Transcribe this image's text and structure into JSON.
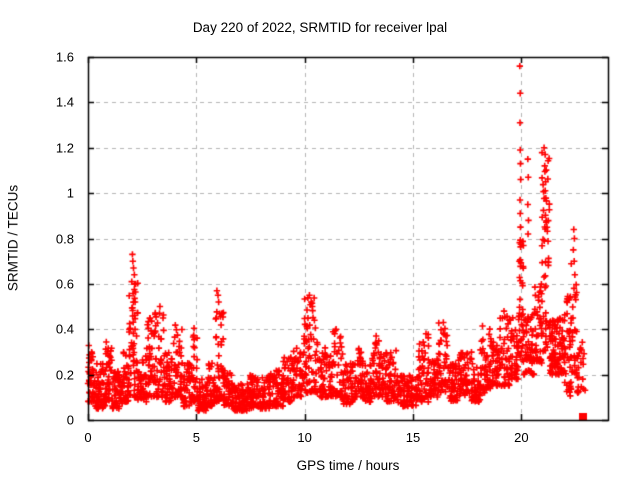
{
  "chart_data": {
    "type": "scatter",
    "title": "Day 220 of 2022, SRMTID for receiver lpal",
    "xlabel": "GPS time / hours",
    "ylabel": "SRMTID / TECUs",
    "xlim": [
      0,
      24
    ],
    "ylim": [
      0,
      1.6
    ],
    "xticks": [
      {
        "value": 0,
        "label": "0"
      },
      {
        "value": 5,
        "label": "5"
      },
      {
        "value": 10,
        "label": "10"
      },
      {
        "value": 15,
        "label": "15"
      },
      {
        "value": 20,
        "label": "20"
      }
    ],
    "yticks": [
      {
        "value": 0,
        "label": "0"
      },
      {
        "value": 0.2,
        "label": "0.2"
      },
      {
        "value": 0.4,
        "label": "0.4"
      },
      {
        "value": 0.6,
        "label": "0.6"
      },
      {
        "value": 0.8,
        "label": "0.8"
      },
      {
        "value": 1.0,
        "label": "1"
      },
      {
        "value": 1.2,
        "label": "1.2"
      },
      {
        "value": 1.4,
        "label": "1.4"
      },
      {
        "value": 1.6,
        "label": "1.6"
      }
    ],
    "grid": true,
    "legend": "none",
    "marker": "plus",
    "marker_color": "#ff0000",
    "grid_color": "#b5b5b5",
    "frame_color": "#000000",
    "seed": 42,
    "series_name": "SRMTID",
    "density_envelope_segments_comment": "each segment: [t_start_h, t_end_h, value_min_TECU, value_max_TECU, n_points, bottom_bias_exponent]",
    "envelope_segments": [
      [
        0.0,
        0.3,
        0.08,
        0.33,
        40,
        1.5
      ],
      [
        0.3,
        0.8,
        0.05,
        0.25,
        60,
        1.6
      ],
      [
        0.8,
        1.1,
        0.08,
        0.37,
        40,
        1.6
      ],
      [
        1.1,
        1.6,
        0.05,
        0.22,
        60,
        1.5
      ],
      [
        1.6,
        1.9,
        0.08,
        0.3,
        35,
        1.5
      ],
      [
        1.9,
        2.3,
        0.1,
        0.62,
        60,
        1.6
      ],
      [
        2.3,
        2.7,
        0.08,
        0.3,
        45,
        1.5
      ],
      [
        2.7,
        3.1,
        0.1,
        0.45,
        45,
        1.7
      ],
      [
        3.1,
        3.5,
        0.1,
        0.5,
        42,
        1.9
      ],
      [
        3.5,
        3.9,
        0.08,
        0.3,
        42,
        1.5
      ],
      [
        3.9,
        4.35,
        0.1,
        0.42,
        46,
        1.7
      ],
      [
        4.35,
        4.75,
        0.06,
        0.25,
        42,
        1.5
      ],
      [
        4.75,
        5.05,
        0.08,
        0.42,
        34,
        1.8
      ],
      [
        5.05,
        5.55,
        0.04,
        0.18,
        52,
        1.4
      ],
      [
        5.55,
        5.85,
        0.06,
        0.25,
        34,
        1.5
      ],
      [
        5.85,
        6.25,
        0.08,
        0.5,
        50,
        1.7
      ],
      [
        6.25,
        6.65,
        0.06,
        0.22,
        45,
        1.4
      ],
      [
        6.65,
        7.4,
        0.04,
        0.16,
        75,
        1.3
      ],
      [
        7.4,
        8.4,
        0.05,
        0.2,
        100,
        1.4
      ],
      [
        8.4,
        9.0,
        0.06,
        0.22,
        62,
        1.4
      ],
      [
        9.0,
        9.45,
        0.08,
        0.28,
        46,
        1.5
      ],
      [
        9.45,
        9.95,
        0.1,
        0.32,
        50,
        1.5
      ],
      [
        9.95,
        10.6,
        0.12,
        0.55,
        72,
        1.8
      ],
      [
        10.6,
        11.2,
        0.1,
        0.32,
        56,
        1.5
      ],
      [
        11.2,
        11.75,
        0.1,
        0.4,
        50,
        1.7
      ],
      [
        11.75,
        12.35,
        0.07,
        0.25,
        56,
        1.4
      ],
      [
        12.35,
        12.75,
        0.1,
        0.33,
        40,
        1.6
      ],
      [
        12.75,
        13.1,
        0.08,
        0.25,
        36,
        1.4
      ],
      [
        13.1,
        13.45,
        0.1,
        0.37,
        36,
        1.7
      ],
      [
        13.45,
        13.75,
        0.1,
        0.3,
        30,
        1.5
      ],
      [
        13.75,
        14.25,
        0.08,
        0.33,
        50,
        1.6
      ],
      [
        14.25,
        15.25,
        0.06,
        0.2,
        95,
        1.3
      ],
      [
        15.25,
        15.75,
        0.08,
        0.38,
        50,
        1.7
      ],
      [
        15.75,
        16.15,
        0.1,
        0.28,
        40,
        1.5
      ],
      [
        16.15,
        16.6,
        0.12,
        0.43,
        46,
        1.7
      ],
      [
        16.6,
        17.1,
        0.08,
        0.25,
        50,
        1.4
      ],
      [
        17.1,
        17.7,
        0.1,
        0.3,
        56,
        1.4
      ],
      [
        17.7,
        18.1,
        0.08,
        0.25,
        40,
        1.4
      ],
      [
        18.1,
        18.6,
        0.12,
        0.42,
        50,
        1.6
      ],
      [
        18.6,
        19.0,
        0.15,
        0.35,
        40,
        1.4
      ],
      [
        19.0,
        19.45,
        0.15,
        0.48,
        46,
        1.6
      ],
      [
        19.45,
        19.85,
        0.18,
        0.45,
        42,
        1.5
      ],
      [
        19.85,
        20.1,
        0.25,
        0.8,
        42,
        1.2
      ],
      [
        20.1,
        20.6,
        0.2,
        0.5,
        52,
        1.4
      ],
      [
        20.6,
        20.95,
        0.25,
        0.6,
        40,
        1.4
      ],
      [
        20.95,
        21.3,
        0.3,
        1.2,
        55,
        1.3
      ],
      [
        21.3,
        22.0,
        0.2,
        0.45,
        100,
        1.2
      ],
      [
        22.0,
        22.3,
        0.1,
        0.55,
        40,
        1.5
      ],
      [
        22.3,
        22.55,
        0.2,
        0.7,
        26,
        1.6
      ],
      [
        22.55,
        22.95,
        0.12,
        0.35,
        24,
        1.5
      ]
    ],
    "outlier_points": [
      [
        2.02,
        0.61
      ],
      [
        2.05,
        0.73
      ],
      [
        2.07,
        0.7
      ],
      [
        2.1,
        0.67
      ],
      [
        2.14,
        0.64
      ],
      [
        2.2,
        0.6
      ],
      [
        3.32,
        0.5
      ],
      [
        3.3,
        0.47
      ],
      [
        5.95,
        0.57
      ],
      [
        6.0,
        0.55
      ],
      [
        6.03,
        0.52
      ],
      [
        10.22,
        0.55
      ],
      [
        10.3,
        0.52
      ],
      [
        10.35,
        0.5
      ],
      [
        11.45,
        0.4
      ],
      [
        13.3,
        0.37
      ],
      [
        15.6,
        0.38
      ],
      [
        16.4,
        0.43
      ],
      [
        19.2,
        0.48
      ],
      [
        19.6,
        0.45
      ],
      [
        19.93,
        1.56
      ],
      [
        19.95,
        1.44
      ],
      [
        19.94,
        1.31
      ],
      [
        19.95,
        1.19
      ],
      [
        19.96,
        1.13
      ],
      [
        19.97,
        1.06
      ],
      [
        19.94,
        0.97
      ],
      [
        19.95,
        0.91
      ],
      [
        19.96,
        0.85
      ],
      [
        20.3,
        1.15
      ],
      [
        20.32,
        1.07
      ],
      [
        20.3,
        0.95
      ],
      [
        20.33,
        0.88
      ],
      [
        20.31,
        0.82
      ],
      [
        21.05,
        1.2
      ],
      [
        21.1,
        1.17
      ],
      [
        21.08,
        1.12
      ],
      [
        21.12,
        1.05
      ],
      [
        22.42,
        0.84
      ],
      [
        22.45,
        0.8
      ],
      [
        22.4,
        0.75
      ],
      [
        22.44,
        0.7
      ],
      [
        22.47,
        0.64
      ],
      [
        22.43,
        0.58
      ]
    ],
    "square_marker_point": {
      "x": 22.84,
      "y": 0.015,
      "marker": "filled-square",
      "color": "#ff0000"
    }
  }
}
